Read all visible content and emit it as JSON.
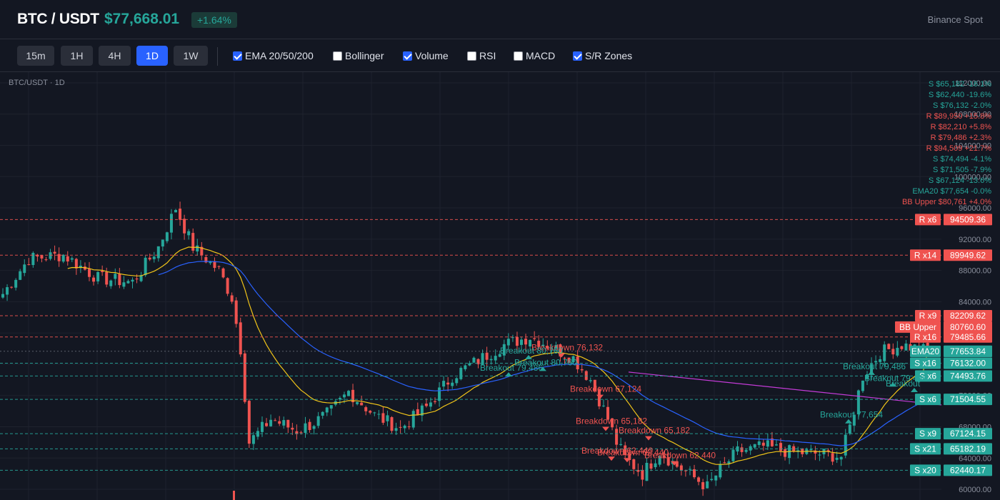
{
  "header": {
    "pair": "BTC / USDT",
    "price": "$77,668.01",
    "change": "+1.64%",
    "exchange": "Binance Spot"
  },
  "toolbar": {
    "timeframes": [
      {
        "label": "15m",
        "active": false
      },
      {
        "label": "1H",
        "active": false
      },
      {
        "label": "4H",
        "active": false
      },
      {
        "label": "1D",
        "active": true
      },
      {
        "label": "1W",
        "active": false
      }
    ],
    "indicators": [
      {
        "label": "EMA 20/50/200",
        "checked": true
      },
      {
        "label": "Bollinger",
        "checked": false
      },
      {
        "label": "Volume",
        "checked": true
      },
      {
        "label": "RSI",
        "checked": false
      },
      {
        "label": "MACD",
        "checked": false
      },
      {
        "label": "S/R Zones",
        "checked": true
      }
    ]
  },
  "chart_label": "BTC/USDT · 1D",
  "colors": {
    "background": "#131722",
    "up": "#26a69a",
    "down": "#ef5350",
    "ema20": "#f0c419",
    "ema50": "#2962ff",
    "ema200": "#c43bd8",
    "grid": "#1e222d"
  },
  "chart_data": {
    "type": "candlestick",
    "ylim": [
      59000,
      113000
    ],
    "y_ticks": [
      "112000.00",
      "108000.00",
      "104000.00",
      "100000.00",
      "96000.00",
      "92000.00",
      "88000.00",
      "84000.00",
      "80000.00",
      "76000.00",
      "72000.00",
      "68000.00",
      "64000.00",
      "60000.00"
    ],
    "y_tick_values": [
      112000,
      108000,
      104000,
      100000,
      96000,
      92000,
      88000,
      84000,
      80000,
      76000,
      72000,
      68000,
      64000,
      60000
    ],
    "last_price": 77668.01,
    "levels": [
      {
        "tag": "R x6",
        "value": "94509.36",
        "price": 94509.36,
        "kind": "R"
      },
      {
        "tag": "R x14",
        "value": "89949.62",
        "price": 89949.62,
        "kind": "R"
      },
      {
        "tag": "R x9",
        "value": "82209.62",
        "price": 82209.62,
        "kind": "R"
      },
      {
        "tag": "BB Upper",
        "value": "80760.60",
        "price": 80760.6,
        "kind": "BB"
      },
      {
        "tag": "R x16",
        "value": "79485.66",
        "price": 79485.66,
        "kind": "R"
      },
      {
        "tag": "",
        "value": "77668.01",
        "price": 77668.01,
        "kind": "LAST"
      },
      {
        "tag": "EMA20",
        "value": "77653.84",
        "price": 77653.84,
        "kind": "EMA"
      },
      {
        "tag": "S x16",
        "value": "76132.00",
        "price": 76132.0,
        "kind": "S"
      },
      {
        "tag": "S x6",
        "value": "74493.76",
        "price": 74493.76,
        "kind": "S"
      },
      {
        "tag": "S x6",
        "value": "71504.55",
        "price": 71504.55,
        "kind": "S"
      },
      {
        "tag": "S x9",
        "value": "67124.15",
        "price": 67124.15,
        "kind": "S"
      },
      {
        "tag": "S x21",
        "value": "65182.19",
        "price": 65182.19,
        "kind": "S"
      },
      {
        "tag": "S x20",
        "value": "62440.17",
        "price": 62440.17,
        "kind": "S"
      }
    ],
    "legend": [
      {
        "text": "S $65,182 -16.1%",
        "kind": "S"
      },
      {
        "text": "S $62,440 -19.6%",
        "kind": "S"
      },
      {
        "text": "S $76,132 -2.0%",
        "kind": "S"
      },
      {
        "text": "R $89,950 +15.8%",
        "kind": "R"
      },
      {
        "text": "R $82,210 +5.8%",
        "kind": "R"
      },
      {
        "text": "R $79,486 +2.3%",
        "kind": "R"
      },
      {
        "text": "R $94,509 +21.7%",
        "kind": "R"
      },
      {
        "text": "S $74,494 -4.1%",
        "kind": "S"
      },
      {
        "text": "S $71,505 -7.9%",
        "kind": "S"
      },
      {
        "text": "S $67,124 -13.6%",
        "kind": "S"
      },
      {
        "text": "EMA20 $77,654 -0.0%",
        "kind": "S"
      },
      {
        "text": "BB Upper $80,761 +4.0%",
        "kind": "R"
      }
    ],
    "annotations": [
      {
        "text": "Breakdown 76,132",
        "kind": "down",
        "price": 77400
      },
      {
        "text": "Breakout 80,760",
        "kind": "up",
        "price": 77000
      },
      {
        "text": "Breakout 80,760",
        "kind": "up",
        "price": 75500
      },
      {
        "text": "Breakout 79,486",
        "kind": "up",
        "price": 74800
      },
      {
        "text": "Breakdown 67,124",
        "kind": "down",
        "price": 72100
      },
      {
        "text": "Breakdown 65,182",
        "kind": "down",
        "price": 68000
      },
      {
        "text": "Breakdown 65,182",
        "kind": "down",
        "price": 66800
      },
      {
        "text": "Breakdown 62,440",
        "kind": "down",
        "price": 64200
      },
      {
        "text": "Breakdown 62,440",
        "kind": "down",
        "price": 64000
      },
      {
        "text": "Breakdown 62,440",
        "kind": "down",
        "price": 63600
      },
      {
        "text": "Breakout 77,654",
        "kind": "up",
        "price": 68800
      },
      {
        "text": "Breakout 79,486",
        "kind": "up",
        "price": 75000
      },
      {
        "text": "Breakout 79,486",
        "kind": "up",
        "price": 73500
      },
      {
        "text": "Breakout",
        "kind": "up",
        "price": 72800
      }
    ],
    "ema20_at_last": 77653.84,
    "ema200_start": 75000,
    "ema200_end": 70800
  }
}
